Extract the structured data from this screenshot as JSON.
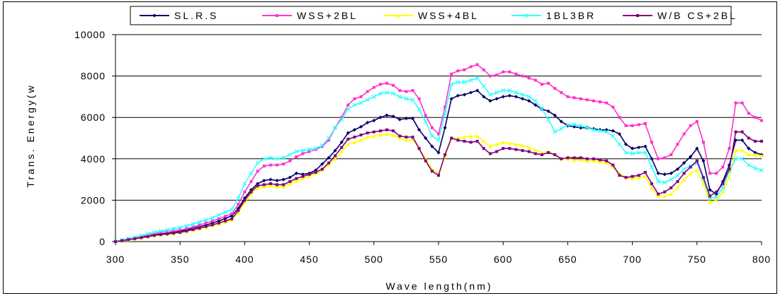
{
  "chart_data": {
    "type": "line",
    "xlabel": "Wave length(nm)",
    "ylabel": "Trans. Energy(w",
    "xlim": [
      300,
      800
    ],
    "ylim": [
      0,
      10000
    ],
    "xticks": [
      "300",
      "350",
      "400",
      "450",
      "500",
      "550",
      "600",
      "650",
      "700",
      "750",
      "800"
    ],
    "yticks": [
      "0",
      "2000",
      "4000",
      "6000",
      "8000",
      "10000"
    ],
    "grid": "horizontal",
    "legend_position": "top",
    "x": [
      300,
      305,
      310,
      315,
      320,
      325,
      330,
      335,
      340,
      345,
      350,
      355,
      360,
      365,
      370,
      375,
      380,
      385,
      390,
      395,
      400,
      405,
      410,
      415,
      420,
      425,
      430,
      435,
      440,
      445,
      450,
      455,
      460,
      465,
      470,
      475,
      480,
      485,
      490,
      495,
      500,
      505,
      510,
      515,
      520,
      525,
      530,
      535,
      540,
      545,
      550,
      555,
      560,
      565,
      570,
      575,
      580,
      585,
      590,
      595,
      600,
      605,
      610,
      615,
      620,
      625,
      630,
      635,
      640,
      645,
      650,
      655,
      660,
      665,
      670,
      675,
      680,
      685,
      690,
      695,
      700,
      705,
      710,
      715,
      720,
      725,
      730,
      735,
      740,
      745,
      750,
      755,
      760,
      765,
      770,
      775,
      780,
      785,
      790,
      795,
      800
    ],
    "series": [
      {
        "name": "SL.R.S",
        "color": "#000066",
        "marker": "diamond",
        "values": [
          0,
          50,
          100,
          150,
          200,
          260,
          320,
          370,
          400,
          450,
          500,
          570,
          640,
          720,
          800,
          900,
          1000,
          1120,
          1250,
          1600,
          2100,
          2500,
          2800,
          2950,
          3000,
          2950,
          3000,
          3100,
          3300,
          3250,
          3300,
          3450,
          3750,
          4050,
          4400,
          4800,
          5250,
          5400,
          5550,
          5750,
          5850,
          6000,
          6100,
          6050,
          5900,
          5950,
          5950,
          5400,
          5000,
          4600,
          4300,
          5500,
          6900,
          7050,
          7100,
          7200,
          7300,
          7000,
          6800,
          6900,
          7000,
          7050,
          7000,
          6900,
          6800,
          6600,
          6400,
          6300,
          6100,
          5800,
          5600,
          5550,
          5500,
          5500,
          5450,
          5400,
          5400,
          5350,
          5200,
          4700,
          4500,
          4550,
          4600,
          4000,
          3300,
          3250,
          3300,
          3500,
          3800,
          4100,
          4500,
          3900,
          2500,
          2300,
          2900,
          3700,
          4900,
          4900,
          4500,
          4300,
          4200
        ]
      },
      {
        "name": "WSS+2BL",
        "color": "#ff33cc",
        "marker": "square",
        "values": [
          0,
          60,
          120,
          180,
          250,
          320,
          390,
          440,
          480,
          520,
          560,
          620,
          700,
          800,
          900,
          1000,
          1100,
          1220,
          1350,
          1800,
          2400,
          2900,
          3400,
          3650,
          3700,
          3700,
          3750,
          3900,
          4100,
          4250,
          4350,
          4450,
          4600,
          4900,
          5500,
          6000,
          6600,
          6900,
          7000,
          7250,
          7450,
          7600,
          7650,
          7550,
          7300,
          7250,
          7300,
          6900,
          6100,
          5500,
          5200,
          6500,
          8100,
          8250,
          8300,
          8450,
          8550,
          8300,
          8000,
          8050,
          8200,
          8200,
          8100,
          8000,
          7900,
          7800,
          7600,
          7650,
          7400,
          7200,
          7000,
          6950,
          6900,
          6850,
          6800,
          6750,
          6700,
          6500,
          6000,
          5600,
          5600,
          5650,
          5700,
          4800,
          4000,
          4050,
          4200,
          4700,
          5200,
          5600,
          5800,
          4800,
          3300,
          3300,
          3600,
          4500,
          6700,
          6700,
          6200,
          6000,
          5850
        ]
      },
      {
        "name": "WSS+4BL",
        "color": "#ffff00",
        "marker": "triangle",
        "values": [
          0,
          40,
          90,
          130,
          180,
          230,
          280,
          320,
          350,
          390,
          430,
          490,
          550,
          620,
          700,
          780,
          860,
          950,
          1050,
          1400,
          1900,
          2300,
          2600,
          2650,
          2700,
          2650,
          2650,
          2800,
          2950,
          3050,
          3150,
          3300,
          3450,
          3700,
          4000,
          4350,
          4700,
          4800,
          4900,
          5050,
          5100,
          5150,
          5200,
          5150,
          5000,
          4900,
          4950,
          4500,
          4000,
          3500,
          3300,
          4100,
          5000,
          5000,
          5050,
          5100,
          5100,
          4850,
          4600,
          4700,
          4800,
          4750,
          4700,
          4650,
          4550,
          4450,
          4300,
          4350,
          4200,
          4000,
          4000,
          3950,
          3950,
          3900,
          3900,
          3850,
          3800,
          3600,
          3300,
          3100,
          3050,
          3100,
          3150,
          2600,
          2200,
          2200,
          2300,
          2600,
          3000,
          3300,
          3450,
          2800,
          1900,
          2000,
          2400,
          3100,
          4400,
          4400,
          4200,
          4200,
          4150
        ]
      },
      {
        "name": "1BL3BR",
        "color": "#33ffff",
        "marker": "asterisk",
        "values": [
          0,
          70,
          140,
          210,
          290,
          370,
          450,
          510,
          560,
          620,
          680,
          760,
          850,
          950,
          1050,
          1150,
          1280,
          1420,
          1550,
          2100,
          2800,
          3300,
          3800,
          4000,
          4050,
          4000,
          4050,
          4200,
          4350,
          4400,
          4450,
          4500,
          4650,
          5000,
          5500,
          5900,
          6400,
          6600,
          6700,
          6850,
          7000,
          7150,
          7200,
          7150,
          7000,
          6900,
          6850,
          6400,
          5800,
          5100,
          4900,
          6200,
          7600,
          7700,
          7700,
          7800,
          7900,
          7500,
          7100,
          7200,
          7300,
          7300,
          7200,
          7100,
          7000,
          6800,
          6400,
          5900,
          5300,
          5450,
          5650,
          5650,
          5600,
          5500,
          5400,
          5350,
          5300,
          5100,
          4700,
          4300,
          4250,
          4300,
          4300,
          3600,
          2900,
          2850,
          3000,
          3200,
          3500,
          3650,
          3800,
          3000,
          2100,
          2150,
          2600,
          3400,
          4000,
          4000,
          3700,
          3550,
          3450
        ]
      },
      {
        "name": "W/B CS+2BL",
        "color": "#800080",
        "marker": "square",
        "values": [
          0,
          45,
          95,
          140,
          190,
          240,
          300,
          340,
          370,
          410,
          450,
          510,
          580,
          650,
          730,
          810,
          900,
          1000,
          1100,
          1500,
          2000,
          2400,
          2700,
          2750,
          2800,
          2750,
          2750,
          2900,
          3050,
          3150,
          3250,
          3350,
          3500,
          3800,
          4150,
          4550,
          4950,
          5050,
          5150,
          5250,
          5300,
          5350,
          5400,
          5350,
          5100,
          5050,
          5050,
          4500,
          3900,
          3400,
          3200,
          4200,
          5000,
          4900,
          4850,
          4800,
          4850,
          4500,
          4250,
          4350,
          4500,
          4500,
          4450,
          4400,
          4350,
          4250,
          4200,
          4300,
          4200,
          4000,
          4050,
          4050,
          4050,
          4000,
          4000,
          3950,
          3900,
          3700,
          3200,
          3100,
          3150,
          3200,
          3350,
          2800,
          2300,
          2400,
          2600,
          2900,
          3300,
          3600,
          3900,
          3100,
          2200,
          2400,
          2800,
          3500,
          5300,
          5300,
          5000,
          4850,
          4850
        ]
      }
    ]
  }
}
